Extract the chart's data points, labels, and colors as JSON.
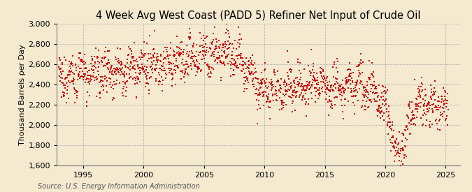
{
  "title": "4 Week Avg West Coast (PADD 5) Refiner Net Input of Crude Oil",
  "ylabel": "Thousand Barrels per Day",
  "source": "Source: U.S. Energy Information Administration",
  "background_color": "#f5e9d0",
  "line_color": "#cc0000",
  "ylim": [
    1600,
    3000
  ],
  "yticks": [
    1600,
    1800,
    2000,
    2200,
    2400,
    2600,
    2800,
    3000
  ],
  "xlim_start": 1992.8,
  "xlim_end": 2026.2,
  "xticks": [
    1995,
    2000,
    2005,
    2010,
    2015,
    2020,
    2025
  ],
  "title_fontsize": 10.5,
  "axis_fontsize": 8,
  "source_fontsize": 7,
  "marker_size": 1.8,
  "grid_color": "#aaaaaa",
  "grid_style": "--",
  "grid_alpha": 0.8
}
